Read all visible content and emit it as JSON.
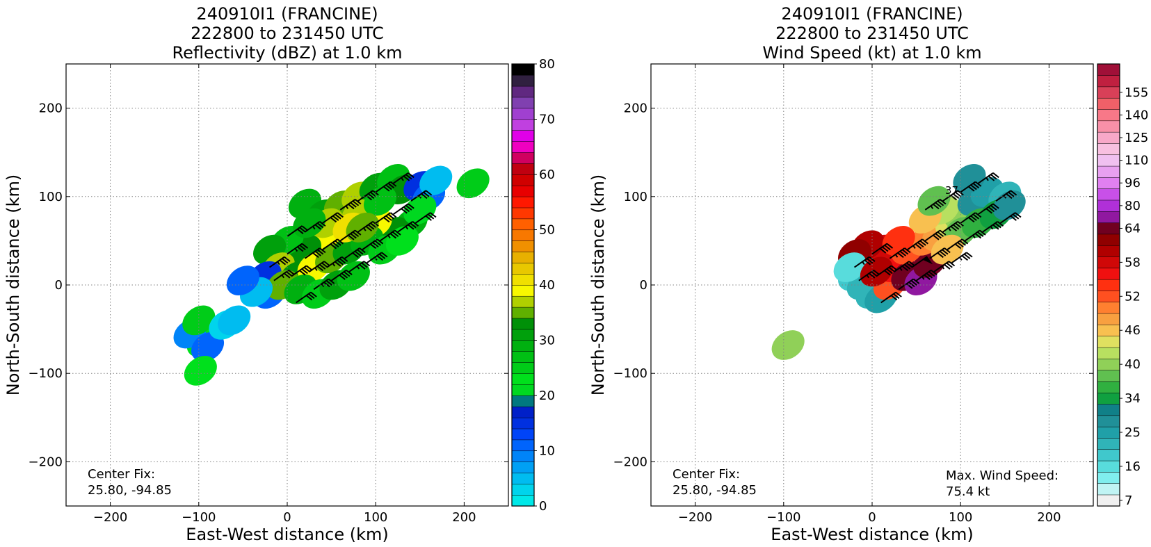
{
  "chart_data": [
    {
      "type": "heatmap",
      "title_lines": [
        "240910I1 (FRANCINE)",
        "222800 to 231450 UTC",
        "Reflectivity (dBZ) at 1.0 km"
      ],
      "xlabel": "East-West distance (km)",
      "ylabel": "North-South distance (km)",
      "xlim": [
        -250,
        250
      ],
      "ylim": [
        -250,
        250
      ],
      "xticks": [
        -200,
        -100,
        0,
        100,
        200
      ],
      "yticks": [
        -200,
        -100,
        0,
        100,
        200
      ],
      "grid": true,
      "annotation": {
        "lines": [
          "Center Fix:",
          "25.80, -94.85"
        ],
        "position": "bottom-left"
      },
      "colorbar": {
        "min": 0,
        "max": 80,
        "tick_labels": [
          "0",
          "10",
          "20",
          "30",
          "40",
          "50",
          "60",
          "70",
          "80"
        ],
        "colors": [
          "#00e8e8",
          "#00d4ec",
          "#00bcf0",
          "#00a0f4",
          "#0084f8",
          "#0064fc",
          "#0044f8",
          "#0030e0",
          "#0020c8",
          "#007880",
          "#00d820",
          "#00e01c",
          "#00cc18",
          "#00c014",
          "#00b010",
          "#00a00c",
          "#009008",
          "#60b000",
          "#b0d000",
          "#f8f800",
          "#f0e000",
          "#e8c800",
          "#e8b000",
          "#f09000",
          "#f87800",
          "#ff6000",
          "#ff3800",
          "#ff1800",
          "#e80000",
          "#d00000",
          "#c00010",
          "#d00060",
          "#f000c0",
          "#e000e8",
          "#c040e0",
          "#a040d0",
          "#8040b0",
          "#602880",
          "#302040",
          "#000000"
        ]
      },
      "field": {
        "cells": [
          [
            20,
            92,
            28
          ],
          [
            40,
            80,
            30
          ],
          [
            60,
            90,
            34
          ],
          [
            80,
            100,
            36
          ],
          [
            100,
            110,
            30
          ],
          [
            120,
            120,
            26
          ],
          [
            130,
            108,
            32
          ],
          [
            150,
            112,
            14
          ],
          [
            160,
            100,
            10
          ],
          [
            168,
            118,
            4
          ],
          [
            140,
            70,
            28
          ],
          [
            120,
            60,
            32
          ],
          [
            100,
            70,
            38
          ],
          [
            80,
            80,
            36
          ],
          [
            60,
            60,
            40
          ],
          [
            40,
            50,
            38
          ],
          [
            20,
            40,
            32
          ],
          [
            0,
            50,
            26
          ],
          [
            -20,
            40,
            30
          ],
          [
            -10,
            20,
            36
          ],
          [
            10,
            10,
            32
          ],
          [
            30,
            20,
            38
          ],
          [
            50,
            30,
            34
          ],
          [
            70,
            40,
            30
          ],
          [
            90,
            50,
            28
          ],
          [
            110,
            40,
            24
          ],
          [
            130,
            50,
            22
          ],
          [
            -25,
            10,
            14
          ],
          [
            -20,
            -10,
            10
          ],
          [
            -5,
            0,
            34
          ],
          [
            15,
            -5,
            28
          ],
          [
            35,
            -10,
            24
          ],
          [
            55,
            0,
            30
          ],
          [
            75,
            10,
            26
          ],
          [
            45,
            70,
            36
          ],
          [
            70,
            65,
            40
          ],
          [
            105,
            95,
            26
          ],
          [
            85,
            65,
            34
          ],
          [
            25,
            70,
            28
          ],
          [
            150,
            85,
            20
          ],
          [
            -35,
            -8,
            4
          ],
          [
            -95,
            -65,
            22
          ],
          [
            -110,
            -55,
            8
          ],
          [
            -90,
            -70,
            10
          ],
          [
            -100,
            -40,
            24
          ],
          [
            -70,
            -45,
            2
          ],
          [
            -60,
            -40,
            4
          ],
          [
            210,
            115,
            24
          ],
          [
            -98,
            -97,
            22
          ],
          [
            -50,
            5,
            10
          ]
        ]
      },
      "barbs": [
        [
          -20,
          20,
          35
        ],
        [
          0,
          35,
          35
        ],
        [
          20,
          30,
          40
        ],
        [
          40,
          40,
          40
        ],
        [
          60,
          50,
          40
        ],
        [
          80,
          60,
          45
        ],
        [
          100,
          70,
          40
        ],
        [
          120,
          80,
          40
        ],
        [
          140,
          95,
          35
        ],
        [
          -15,
          5,
          35
        ],
        [
          5,
          10,
          40
        ],
        [
          25,
          15,
          45
        ],
        [
          45,
          20,
          45
        ],
        [
          65,
          30,
          40
        ],
        [
          85,
          40,
          40
        ],
        [
          105,
          50,
          35
        ],
        [
          125,
          60,
          35
        ],
        [
          145,
          70,
          30
        ],
        [
          60,
          85,
          45
        ],
        [
          80,
          95,
          40
        ],
        [
          100,
          105,
          40
        ],
        [
          120,
          115,
          35
        ],
        [
          10,
          -20,
          30
        ],
        [
          30,
          -5,
          35
        ],
        [
          50,
          5,
          40
        ],
        [
          70,
          15,
          35
        ],
        [
          90,
          25,
          35
        ],
        [
          0,
          55,
          30
        ],
        [
          20,
          60,
          35
        ],
        [
          40,
          70,
          40
        ]
      ]
    },
    {
      "type": "heatmap",
      "title_lines": [
        "240910I1 (FRANCINE)",
        "222800 to 231450 UTC",
        "Wind Speed (kt) at 1.0 km"
      ],
      "xlabel": "East-West distance (km)",
      "ylabel": "North-South distance (km)",
      "xlim": [
        -250,
        250
      ],
      "ylim": [
        -250,
        250
      ],
      "xticks": [
        -200,
        -100,
        0,
        100,
        200
      ],
      "yticks": [
        -200,
        -100,
        0,
        100,
        200
      ],
      "grid": true,
      "annotation": {
        "lines": [
          "Center Fix:",
          "25.80, -94.85"
        ],
        "position": "bottom-left"
      },
      "annotation2": {
        "lines": [
          "Max. Wind Speed:",
          "75.4 kt"
        ],
        "position": "bottom-right"
      },
      "barb_label": "37",
      "colorbar": {
        "min": 4,
        "max": 160,
        "tick_labels": [
          "7",
          "16",
          "25",
          "34",
          "40",
          "46",
          "52",
          "58",
          "64",
          "80",
          "96",
          "110",
          "125",
          "140",
          "155"
        ],
        "tick_values": [
          7,
          16,
          25,
          34,
          40,
          46,
          52,
          58,
          64,
          80,
          96,
          110,
          125,
          140,
          155
        ],
        "bins": [
          4,
          10,
          13,
          16,
          19,
          22,
          25,
          28,
          31,
          34,
          36,
          38,
          40,
          42,
          44,
          46,
          48,
          50,
          52,
          54,
          56,
          58,
          60,
          62,
          64,
          72,
          80,
          88,
          96,
          103,
          110,
          117,
          125,
          132,
          140,
          147,
          155,
          160
        ],
        "colors": [
          "#f0f0f0",
          "#c0f4f4",
          "#80eeee",
          "#58dcdc",
          "#40c8cc",
          "#30b4b8",
          "#20a0a8",
          "#209098",
          "#108088",
          "#10a040",
          "#30b040",
          "#60c050",
          "#90d058",
          "#b8e060",
          "#e0e060",
          "#f8c050",
          "#f8a040",
          "#ff8030",
          "#ff5020",
          "#ff3010",
          "#f01010",
          "#d00808",
          "#b00000",
          "#900000",
          "#700020",
          "#9018a0",
          "#b030d8",
          "#c850e8",
          "#e080f0",
          "#e8a0f0",
          "#f0c0f0",
          "#f8c0e0",
          "#f8a8c8",
          "#f890a8",
          "#f87888",
          "#f06068",
          "#d84058",
          "#c02040",
          "#a01038"
        ]
      },
      "field": {
        "cells": [
          [
            -20,
            10,
            20
          ],
          [
            -10,
            0,
            22
          ],
          [
            0,
            -10,
            24
          ],
          [
            10,
            -15,
            26
          ],
          [
            20,
            0,
            52
          ],
          [
            25,
            20,
            56
          ],
          [
            10,
            40,
            58
          ],
          [
            -5,
            45,
            60
          ],
          [
            -20,
            35,
            62
          ],
          [
            40,
            10,
            70
          ],
          [
            55,
            5,
            72
          ],
          [
            65,
            25,
            66
          ],
          [
            40,
            40,
            52
          ],
          [
            60,
            50,
            50
          ],
          [
            75,
            55,
            48
          ],
          [
            90,
            70,
            44
          ],
          [
            100,
            80,
            40
          ],
          [
            80,
            85,
            42
          ],
          [
            60,
            75,
            46
          ],
          [
            115,
            95,
            28
          ],
          [
            130,
            105,
            26
          ],
          [
            150,
            100,
            24
          ],
          [
            110,
            120,
            28
          ],
          [
            100,
            60,
            38
          ],
          [
            120,
            70,
            36
          ],
          [
            140,
            80,
            34
          ],
          [
            155,
            90,
            28
          ],
          [
            30,
            50,
            54
          ],
          [
            -25,
            20,
            18
          ],
          [
            5,
            15,
            60
          ],
          [
            85,
            40,
            46
          ],
          [
            70,
            95,
            38
          ],
          [
            -95,
            -68,
            40
          ]
        ]
      },
      "barbs": [
        [
          -20,
          20,
          35
        ],
        [
          0,
          35,
          40
        ],
        [
          20,
          30,
          45
        ],
        [
          40,
          40,
          45
        ],
        [
          60,
          50,
          40
        ],
        [
          80,
          60,
          45
        ],
        [
          100,
          70,
          40
        ],
        [
          120,
          80,
          40
        ],
        [
          140,
          95,
          35
        ],
        [
          -15,
          5,
          35
        ],
        [
          5,
          10,
          40
        ],
        [
          25,
          15,
          45
        ],
        [
          45,
          20,
          50
        ],
        [
          65,
          30,
          40
        ],
        [
          85,
          40,
          40
        ],
        [
          105,
          50,
          35
        ],
        [
          125,
          60,
          35
        ],
        [
          145,
          70,
          30
        ],
        [
          60,
          85,
          45
        ],
        [
          80,
          95,
          40
        ],
        [
          100,
          105,
          40
        ],
        [
          120,
          115,
          35
        ],
        [
          10,
          -20,
          30
        ],
        [
          30,
          -5,
          40
        ],
        [
          50,
          5,
          45
        ],
        [
          70,
          15,
          35
        ],
        [
          90,
          25,
          35
        ]
      ]
    }
  ]
}
